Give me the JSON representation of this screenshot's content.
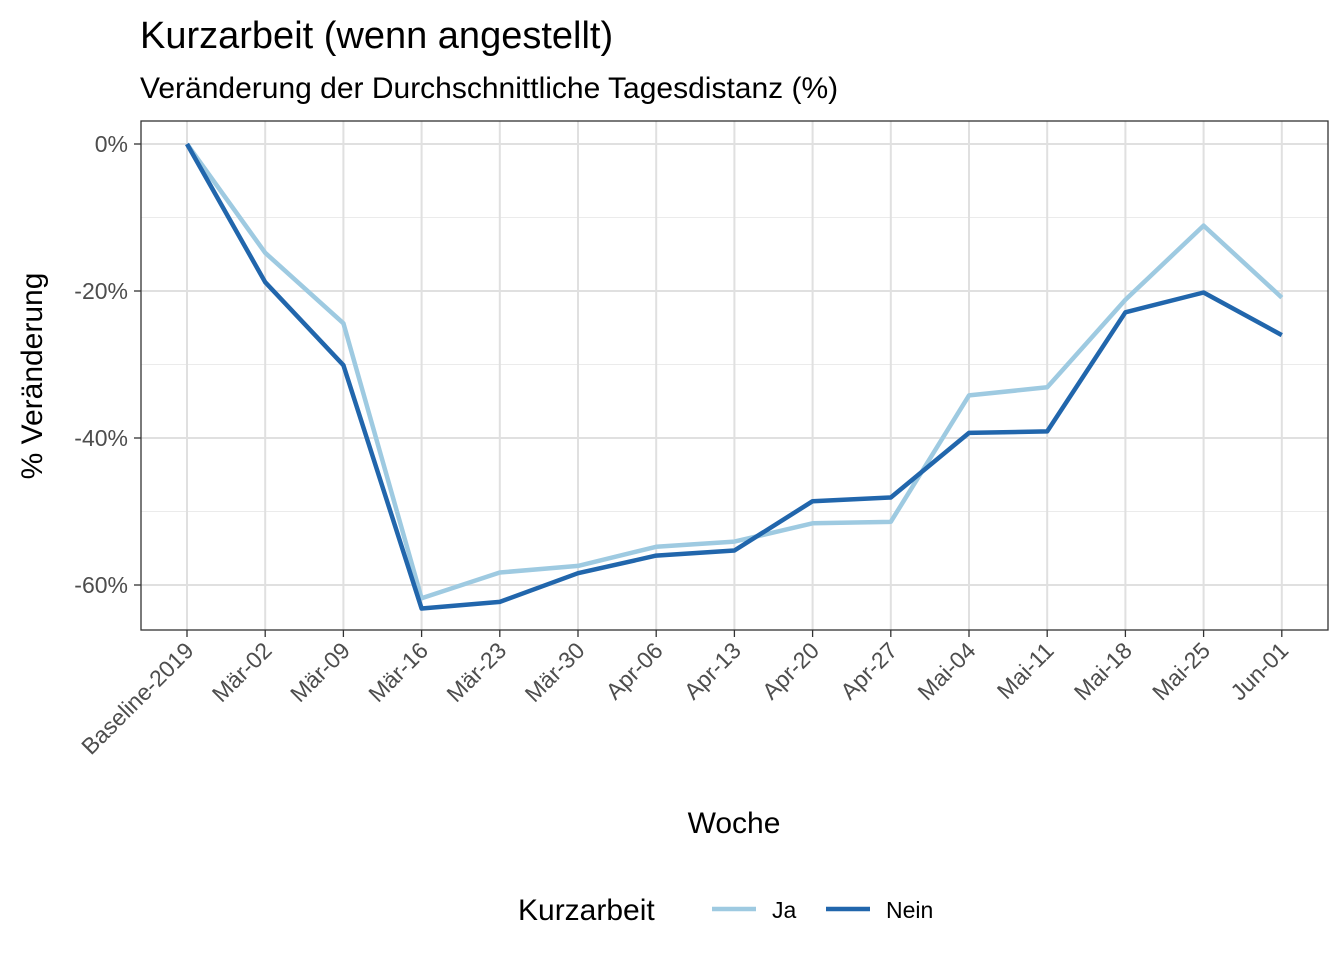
{
  "chart_data": {
    "type": "line",
    "title": "Kurzarbeit (wenn angestellt)",
    "subtitle": "Veränderung der Durchschnittliche Tagesdistanz (%)",
    "xlabel": "Woche",
    "ylabel": "% Veränderung",
    "categories": [
      "Baseline-2019",
      "Mär-02",
      "Mär-09",
      "Mär-16",
      "Mär-23",
      "Mär-30",
      "Apr-06",
      "Apr-13",
      "Apr-20",
      "Apr-27",
      "Mai-04",
      "Mai-11",
      "Mai-18",
      "Mai-25",
      "Jun-01"
    ],
    "y_ticks": [
      0,
      -20,
      -40,
      -60
    ],
    "y_tick_labels": [
      "0%",
      "-20%",
      "-40%",
      "-60%"
    ],
    "ylim": [
      -66.3,
      3.1
    ],
    "grid": true,
    "legend": {
      "title": "Kurzarbeit",
      "position": "bottom"
    },
    "series": [
      {
        "name": "Ja",
        "color": "#9ecae1",
        "values": [
          0,
          -14.8,
          -24.4,
          -61.8,
          -58.3,
          -57.4,
          -54.8,
          -54.1,
          -51.6,
          -51.4,
          -34.2,
          -33.1,
          -21.2,
          -11.1,
          -20.9
        ]
      },
      {
        "name": "Nein",
        "color": "#2166ac",
        "values": [
          0,
          -18.8,
          -30.1,
          -63.2,
          -62.3,
          -58.4,
          -56.0,
          -55.3,
          -48.6,
          -48.1,
          -39.3,
          -39.1,
          -22.9,
          -20.2,
          -26.0
        ]
      }
    ]
  }
}
